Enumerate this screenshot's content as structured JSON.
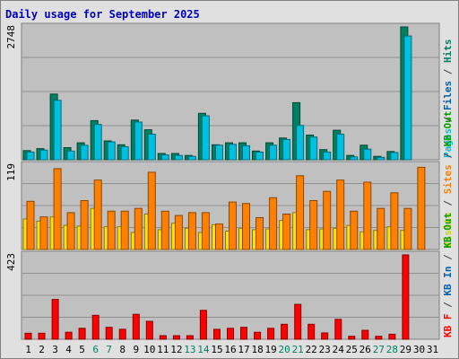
{
  "chart_data": {
    "type": "bar",
    "title": "Daily usage for September 2025",
    "categories": [
      "1",
      "2",
      "3",
      "4",
      "5",
      "6",
      "7",
      "8",
      "9",
      "10",
      "11",
      "12",
      "13",
      "14",
      "15",
      "16",
      "17",
      "18",
      "19",
      "20",
      "21",
      "22",
      "23",
      "24",
      "25",
      "26",
      "27",
      "28",
      "29",
      "30",
      "31"
    ],
    "weekend_days": [
      "6",
      "7",
      "13",
      "14",
      "20",
      "21",
      "27",
      "28"
    ],
    "panels": [
      {
        "name": "hits-files-pages",
        "ymax": 2748,
        "ymax_label": "2748",
        "label_parts": [
          {
            "text": "Pages",
            "color": "#00c0e0"
          },
          {
            "text": " / ",
            "color": "#404040"
          },
          {
            "text": "Files",
            "color": "#0060b0"
          },
          {
            "text": " / ",
            "color": "#404040"
          },
          {
            "text": "Hits",
            "color": "#008060"
          }
        ],
        "series": [
          {
            "name": "Hits",
            "color": "#008060",
            "values": [
              190,
              230,
              1360,
              250,
              350,
              810,
              390,
              310,
              820,
              620,
              130,
              130,
              90,
              960,
              310,
              350,
              350,
              180,
              350,
              450,
              1180,
              510,
              210,
              610,
              90,
              300,
              70,
              170,
              2748,
              0,
              0
            ]
          },
          {
            "name": "Files",
            "color": "#00c0e0",
            "values": [
              160,
              200,
              1230,
              180,
              300,
              730,
              370,
              270,
              780,
              530,
              100,
              90,
              70,
              910,
              300,
              320,
              290,
              160,
              300,
              420,
              710,
              470,
              160,
              530,
              60,
              220,
              50,
              150,
              2560,
              0,
              0
            ]
          }
        ]
      },
      {
        "name": "visits-sites-kb",
        "ymax": 119,
        "ymax_label": "119",
        "label_parts": [
          {
            "text": "Visits",
            "color": "#d0d000"
          },
          {
            "text": " / ",
            "color": "#404040"
          },
          {
            "text": "Sites",
            "color": "#ff8000"
          },
          {
            "text": " / ",
            "color": "#404040"
          },
          {
            "text": "KB Out",
            "color": "#00a000"
          }
        ],
        "series": [
          {
            "name": "Visits",
            "color": "#ffe000",
            "values": [
              43,
              40,
              46,
              34,
              33,
              58,
              32,
              32,
              24,
              50,
              28,
              37,
              30,
              24,
              35,
              26,
              30,
              28,
              29,
              41,
              52,
              28,
              29,
              30,
              34,
              25,
              27,
              32,
              27,
              0,
              0
            ]
          },
          {
            "name": "Sites",
            "color": "#ff8000",
            "values": [
              68,
              46,
              114,
              52,
              69,
              98,
              54,
              54,
              58,
              109,
              54,
              48,
              52,
              52,
              36,
              67,
              65,
              45,
              73,
              50,
              104,
              69,
              82,
              98,
              54,
              95,
              58,
              80,
              58,
              116,
              0
            ]
          }
        ]
      },
      {
        "name": "kbin-kbout",
        "ymax": 423,
        "ymax_label": "423",
        "label_parts": [
          {
            "text": "KB F",
            "color": "#ff0000"
          },
          {
            "text": " / ",
            "color": "#404040"
          },
          {
            "text": "KB In",
            "color": "#0060b0"
          },
          {
            "text": " / ",
            "color": "#404040"
          },
          {
            "text": "KB Out",
            "color": "#00a000"
          }
        ],
        "series": [
          {
            "name": "KB F",
            "color": "#ff0000",
            "values": [
              30,
              30,
              200,
              35,
              55,
              120,
              60,
              50,
              125,
              90,
              18,
              18,
              18,
              145,
              50,
              55,
              60,
              35,
              55,
              75,
              175,
              75,
              32,
              100,
              15,
              45,
              15,
              25,
              423,
              0,
              0
            ]
          }
        ]
      }
    ],
    "grid": true
  }
}
